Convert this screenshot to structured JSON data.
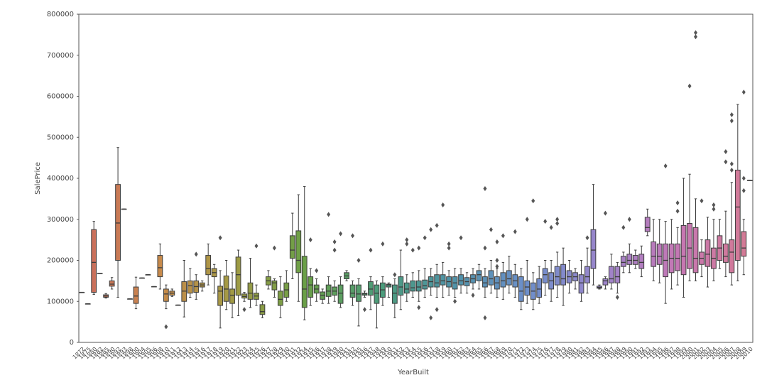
{
  "chart_data": {
    "type": "boxplot",
    "x_label": "YearBuilt",
    "y_label": "SalePrice",
    "categories": [
      "1872",
      "1875",
      "1880",
      "1882",
      "1885",
      "1890",
      "1892",
      "1893",
      "1898",
      "1900",
      "1904",
      "1905",
      "1906",
      "1908",
      "1910",
      "1911",
      "1912",
      "1913",
      "1914",
      "1915",
      "1916",
      "1917",
      "1918",
      "1919",
      "1920",
      "1921",
      "1922",
      "1923",
      "1924",
      "1925",
      "1926",
      "1927",
      "1928",
      "1929",
      "1930",
      "1931",
      "1932",
      "1934",
      "1935",
      "1936",
      "1937",
      "1938",
      "1939",
      "1940",
      "1941",
      "1942",
      "1945",
      "1946",
      "1947",
      "1948",
      "1949",
      "1950",
      "1951",
      "1952",
      "1953",
      "1954",
      "1955",
      "1956",
      "1957",
      "1958",
      "1959",
      "1960",
      "1961",
      "1962",
      "1963",
      "1964",
      "1965",
      "1966",
      "1967",
      "1968",
      "1969",
      "1970",
      "1971",
      "1972",
      "1973",
      "1974",
      "1975",
      "1976",
      "1977",
      "1978",
      "1979",
      "1980",
      "1981",
      "1982",
      "1983",
      "1984",
      "1985",
      "1986",
      "1987",
      "1988",
      "1989",
      "1990",
      "1991",
      "1992",
      "1993",
      "1994",
      "1995",
      "1996",
      "1997",
      "1998",
      "1999",
      "2000",
      "2001",
      "2002",
      "2003",
      "2004",
      "2005",
      "2006",
      "2007",
      "2008",
      "2009",
      "2010"
    ],
    "low": [
      122000,
      94000,
      117000,
      168000,
      108000,
      130000,
      110000,
      325000,
      106000,
      82000,
      157000,
      165000,
      136000,
      130000,
      82000,
      112000,
      91000,
      62000,
      110000,
      105000,
      125000,
      140000,
      120000,
      35000,
      80000,
      60000,
      65000,
      100000,
      85000,
      90000,
      60000,
      130000,
      110000,
      60000,
      100000,
      155000,
      100000,
      55000,
      90000,
      100000,
      95000,
      95000,
      100000,
      85000,
      150000,
      90000,
      40000,
      110000,
      80000,
      35000,
      90000,
      110000,
      60000,
      80000,
      100000,
      110000,
      100000,
      110000,
      115000,
      110000,
      110000,
      115000,
      110000,
      120000,
      120000,
      130000,
      130000,
      110000,
      120000,
      110000,
      105000,
      120000,
      110000,
      80000,
      95000,
      80000,
      95000,
      115000,
      100000,
      110000,
      90000,
      120000,
      130000,
      100000,
      120000,
      140000,
      130000,
      130000,
      130000,
      120000,
      170000,
      170000,
      180000,
      160000,
      260000,
      150000,
      145000,
      95000,
      130000,
      140000,
      110000,
      150000,
      150000,
      160000,
      135000,
      150000,
      180000,
      160000,
      140000,
      150000,
      165000,
      395000
    ],
    "q1": [
      122000,
      94000,
      122000,
      168000,
      110000,
      137000,
      200000,
      325000,
      106000,
      95000,
      157000,
      165000,
      136000,
      160000,
      100000,
      115000,
      91000,
      100000,
      120000,
      122000,
      135000,
      165000,
      160000,
      90000,
      100000,
      95000,
      115000,
      108000,
      105000,
      105000,
      68000,
      140000,
      128000,
      90000,
      110000,
      205000,
      170000,
      85000,
      110000,
      120000,
      105000,
      112000,
      115000,
      95000,
      155000,
      110000,
      100000,
      115000,
      115000,
      95000,
      110000,
      135000,
      95000,
      115000,
      120000,
      125000,
      125000,
      130000,
      135000,
      135000,
      140000,
      135000,
      130000,
      140000,
      138000,
      145000,
      150000,
      135000,
      140000,
      130000,
      135000,
      140000,
      135000,
      100000,
      115000,
      105000,
      110000,
      145000,
      130000,
      140000,
      140000,
      145000,
      150000,
      120000,
      145000,
      180000,
      132000,
      140000,
      145000,
      145000,
      185000,
      190000,
      190000,
      180000,
      270000,
      185000,
      190000,
      160000,
      170000,
      175000,
      165000,
      180000,
      170000,
      190000,
      185000,
      180000,
      200000,
      195000,
      170000,
      200000,
      210000,
      395000
    ],
    "median": [
      122000,
      94000,
      195000,
      168000,
      113000,
      142000,
      291000,
      325000,
      106000,
      113000,
      157000,
      165000,
      136000,
      182000,
      118000,
      120000,
      91000,
      125000,
      138000,
      136000,
      140000,
      180000,
      170000,
      125000,
      130000,
      115000,
      165000,
      112000,
      120000,
      113000,
      75000,
      150000,
      145000,
      105000,
      128000,
      225000,
      200000,
      130000,
      140000,
      130000,
      115000,
      125000,
      125000,
      120000,
      162000,
      120000,
      118000,
      118000,
      130000,
      120000,
      128000,
      140000,
      120000,
      135000,
      130000,
      133000,
      135000,
      138000,
      148000,
      145000,
      150000,
      148000,
      145000,
      150000,
      148000,
      155000,
      165000,
      145000,
      155000,
      145000,
      150000,
      155000,
      150000,
      125000,
      135000,
      125000,
      130000,
      165000,
      150000,
      160000,
      155000,
      160000,
      160000,
      145000,
      160000,
      225000,
      134000,
      150000,
      155000,
      160000,
      195000,
      200000,
      200000,
      195000,
      280000,
      210000,
      210000,
      200000,
      205000,
      205000,
      210000,
      230000,
      205000,
      205000,
      215000,
      205000,
      230000,
      210000,
      220000,
      330000,
      230000,
      395000
    ],
    "q3": [
      122000,
      94000,
      275000,
      168000,
      116000,
      150000,
      385000,
      325000,
      106000,
      135000,
      157000,
      165000,
      136000,
      212000,
      130000,
      125000,
      91000,
      148000,
      150000,
      150000,
      145000,
      212000,
      180000,
      137000,
      162000,
      130000,
      208000,
      118000,
      145000,
      120000,
      92000,
      160000,
      150000,
      125000,
      145000,
      260000,
      272000,
      210000,
      160000,
      140000,
      123000,
      140000,
      135000,
      140000,
      170000,
      140000,
      140000,
      120000,
      148000,
      140000,
      145000,
      142000,
      140000,
      160000,
      145000,
      150000,
      150000,
      152000,
      160000,
      165000,
      165000,
      160000,
      160000,
      165000,
      158000,
      165000,
      175000,
      160000,
      175000,
      160000,
      170000,
      175000,
      165000,
      160000,
      150000,
      145000,
      155000,
      180000,
      170000,
      185000,
      190000,
      175000,
      170000,
      165000,
      185000,
      275000,
      137000,
      155000,
      185000,
      185000,
      210000,
      215000,
      212000,
      215000,
      305000,
      245000,
      240000,
      240000,
      240000,
      240000,
      285000,
      290000,
      280000,
      220000,
      250000,
      230000,
      260000,
      240000,
      250000,
      420000,
      270000,
      395000
    ],
    "high": [
      122000,
      94000,
      295000,
      168000,
      119000,
      158000,
      475000,
      325000,
      106000,
      159000,
      157000,
      165000,
      136000,
      240000,
      140000,
      130000,
      91000,
      200000,
      180000,
      165000,
      150000,
      240000,
      190000,
      175000,
      200000,
      170000,
      225000,
      122000,
      205000,
      140000,
      100000,
      175000,
      155000,
      160000,
      175000,
      315000,
      360000,
      380000,
      180000,
      155000,
      130000,
      160000,
      150000,
      160000,
      175000,
      150000,
      155000,
      125000,
      160000,
      150000,
      160000,
      145000,
      155000,
      225000,
      165000,
      170000,
      175000,
      180000,
      180000,
      190000,
      195000,
      175000,
      180000,
      180000,
      170000,
      180000,
      190000,
      180000,
      200000,
      180000,
      195000,
      210000,
      190000,
      180000,
      200000,
      170000,
      185000,
      200000,
      200000,
      220000,
      230000,
      200000,
      180000,
      200000,
      230000,
      385000,
      140000,
      160000,
      215000,
      195000,
      220000,
      240000,
      225000,
      235000,
      325000,
      300000,
      300000,
      295000,
      300000,
      280000,
      400000,
      410000,
      350000,
      250000,
      305000,
      300000,
      300000,
      320000,
      390000,
      580000,
      300000,
      395000
    ],
    "outliers": [
      [],
      [],
      [],
      [],
      [],
      [],
      [],
      [],
      [],
      [],
      [],
      [],
      [],
      [],
      [
        38000
      ],
      [],
      [],
      [],
      [],
      [
        215000
      ],
      [],
      [],
      [],
      [
        255000
      ],
      [],
      [],
      [],
      [
        80000
      ],
      [],
      [
        235000
      ],
      [],
      [],
      [
        230000
      ],
      [],
      [],
      [],
      [],
      [],
      [
        250000
      ],
      [
        175000
      ],
      [],
      [
        312000
      ],
      [
        245000,
        225000
      ],
      [
        265000
      ],
      [],
      [
        260000
      ],
      [
        200000
      ],
      [
        80000
      ],
      [
        225000
      ],
      [],
      [
        240000
      ],
      [],
      [
        165000
      ],
      [],
      [
        250000,
        240000
      ],
      [
        225000
      ],
      [
        85000,
        230000
      ],
      [
        255000
      ],
      [
        275000,
        60000
      ],
      [
        285000,
        80000
      ],
      [
        335000
      ],
      [
        240000,
        230000
      ],
      [
        100000
      ],
      [
        255000
      ],
      [],
      [
        115000
      ],
      [],
      [
        375000,
        230000,
        60000
      ],
      [
        275000
      ],
      [
        245000,
        200000,
        185000
      ],
      [
        260000
      ],
      [],
      [
        270000
      ],
      [],
      [
        300000
      ],
      [
        345000
      ],
      [],
      [
        295000
      ],
      [
        280000
      ],
      [
        300000,
        290000
      ],
      [],
      [],
      [],
      [],
      [
        255000
      ],
      [],
      [],
      [
        315000
      ],
      [],
      [
        110000
      ],
      [
        280000
      ],
      [
        300000
      ],
      [],
      [],
      [],
      [],
      [],
      [
        430000
      ],
      [],
      [
        340000,
        320000
      ],
      [],
      [
        625000
      ],
      [
        755000,
        745000
      ],
      [
        345000
      ],
      [],
      [
        335000,
        325000
      ],
      [],
      [
        465000,
        440000
      ],
      [
        555000,
        435000,
        420000,
        540000
      ],
      [],
      [
        610000,
        400000,
        370000
      ],
      []
    ],
    "palette": [
      "#c96b5e",
      "#c9894b",
      "#a39a45",
      "#6a9f47",
      "#4c9c7a",
      "#4f93a8",
      "#6d8fcb",
      "#9b85cb",
      "#c477b5",
      "#d47a93"
    ],
    "ylim": [
      0,
      800000
    ],
    "yticks": [
      0,
      100000,
      200000,
      300000,
      400000,
      500000,
      600000,
      700000,
      800000
    ]
  }
}
